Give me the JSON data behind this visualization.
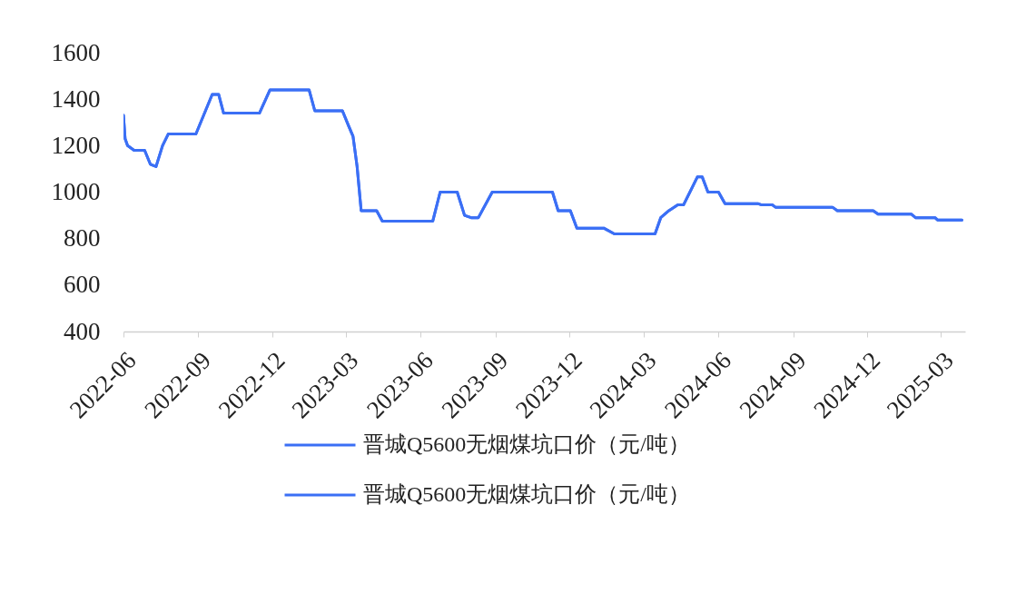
{
  "chart_data": {
    "type": "line",
    "x": [
      "2022-06-01",
      "2022-06-03",
      "2022-06-06",
      "2022-06-14",
      "2022-06-27",
      "2022-07-04",
      "2022-07-11",
      "2022-07-19",
      "2022-07-26",
      "2022-08-29",
      "2022-09-18",
      "2022-09-26",
      "2022-10-02",
      "2022-11-15",
      "2022-11-28",
      "2023-01-15",
      "2023-01-22",
      "2023-02-25",
      "2023-03-04",
      "2023-03-10",
      "2023-03-15",
      "2023-03-20",
      "2023-04-08",
      "2023-04-15",
      "2023-06-16",
      "2023-06-25",
      "2023-07-16",
      "2023-07-25",
      "2023-08-02",
      "2023-08-11",
      "2023-08-28",
      "2023-11-10",
      "2023-11-17",
      "2023-12-02",
      "2023-12-10",
      "2024-01-12",
      "2024-01-25",
      "2024-03-15",
      "2024-03-22",
      "2024-04-01",
      "2024-04-12",
      "2024-04-19",
      "2024-05-06",
      "2024-05-12",
      "2024-05-19",
      "2024-06-01",
      "2024-06-09",
      "2024-07-20",
      "2024-07-24",
      "2024-08-06",
      "2024-08-10",
      "2024-10-19",
      "2024-10-25",
      "2024-12-08",
      "2024-12-14",
      "2025-01-24",
      "2025-01-29",
      "2025-02-22",
      "2025-02-25",
      "2025-03-27"
    ],
    "series": [
      {
        "name": "晋城Q5600无烟煤坑口价（元/吨）",
        "color": "#3b6ff5",
        "values": [
          1330,
          1230,
          1200,
          1180,
          1180,
          1120,
          1110,
          1200,
          1250,
          1250,
          1420,
          1420,
          1340,
          1340,
          1440,
          1440,
          1350,
          1350,
          1290,
          1240,
          1110,
          920,
          920,
          875,
          875,
          1000,
          1000,
          900,
          890,
          890,
          1000,
          1000,
          920,
          920,
          845,
          845,
          820,
          820,
          890,
          920,
          945,
          945,
          1065,
          1065,
          1000,
          1000,
          950,
          950,
          945,
          945,
          935,
          935,
          920,
          920,
          905,
          905,
          890,
          890,
          880,
          880
        ]
      },
      {
        "name": "晋城Q5600无烟煤坑口价（元/吨）",
        "color": "#3b6ff5",
        "values": [
          1330,
          1230,
          1200,
          1180,
          1180,
          1120,
          1110,
          1200,
          1250,
          1250,
          1420,
          1420,
          1340,
          1340,
          1440,
          1440,
          1350,
          1350,
          1290,
          1240,
          1110,
          920,
          920,
          875,
          875,
          1000,
          1000,
          900,
          890,
          890,
          1000,
          1000,
          920,
          920,
          845,
          845,
          820,
          820,
          890,
          920,
          945,
          945,
          1065,
          1065,
          1000,
          1000,
          950,
          950,
          945,
          945,
          935,
          935,
          920,
          920,
          905,
          905,
          890,
          890,
          880,
          880
        ]
      }
    ],
    "xlim": [
      "2022-06-01",
      "2025-03-31"
    ],
    "xticks": [
      "2022-06",
      "2022-09",
      "2022-12",
      "2023-03",
      "2023-06",
      "2023-09",
      "2023-12",
      "2024-03",
      "2024-06",
      "2024-09",
      "2024-12",
      "2025-03"
    ],
    "ylim": [
      400,
      1600
    ],
    "yticks": [
      400,
      600,
      800,
      1000,
      1200,
      1400,
      1600
    ],
    "legend": "bottom",
    "marker": "none",
    "line_style": "solid"
  }
}
